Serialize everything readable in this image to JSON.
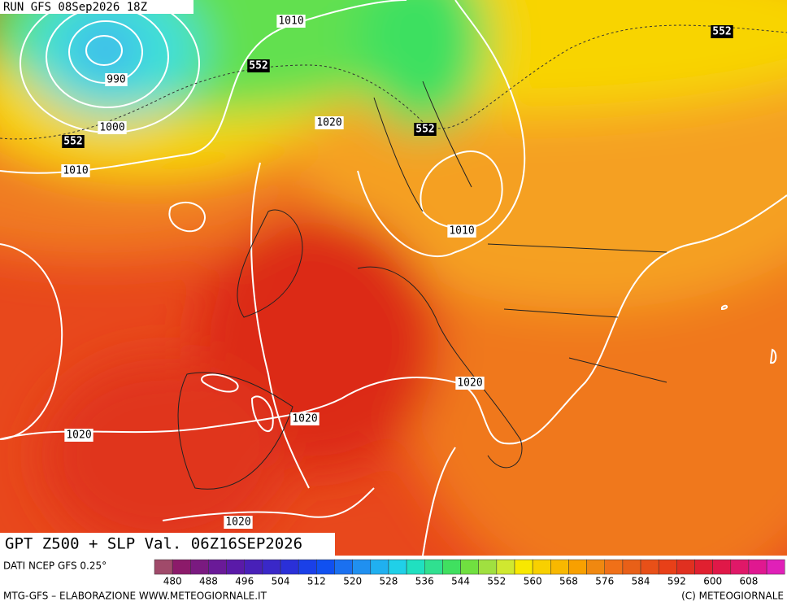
{
  "header": {
    "run": "RUN GFS 08Sep2026 18Z"
  },
  "map": {
    "isobar_labels": [
      1010,
      990,
      1000,
      1010,
      1020,
      1010,
      1020,
      1020,
      1020,
      1020
    ],
    "geopotential_labels": [
      552,
      552,
      552,
      552
    ]
  },
  "title": "GPT Z500 + SLP Val. 06Z16SEP2026",
  "legend": {
    "source": "DATI NCEP GFS 0.25°",
    "ticks": [
      480,
      488,
      496,
      504,
      512,
      520,
      528,
      536,
      544,
      552,
      560,
      568,
      576,
      584,
      592,
      600,
      608
    ]
  },
  "footer": {
    "left": "MTG-GFS – ELABORAZIONE WWW.METEOGIORNALE.IT",
    "right": "(C) METEOGIORNALE"
  }
}
